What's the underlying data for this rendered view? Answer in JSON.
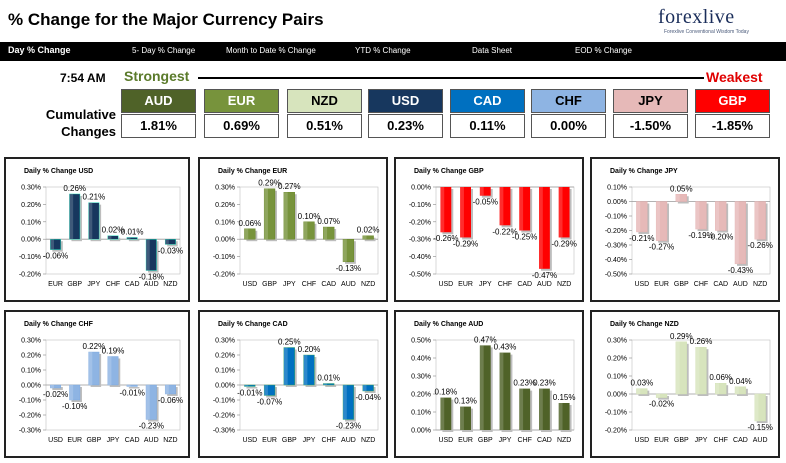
{
  "header": {
    "title": "% Change for the Major Currency Pairs",
    "logo_main": "forexlive",
    "logo_tag": "Forexlive Conventional Wisdom Today"
  },
  "nav": {
    "items": [
      "Day % Change",
      "5- Day % Change",
      "Month to Date % Change",
      "YTD % Change",
      "Data Sheet",
      "EOD % Change"
    ]
  },
  "summary": {
    "time": "7:54 AM",
    "strongest_label": "Strongest",
    "weakest_label": "Weakest",
    "cumulative_label_1": "Cumulative",
    "cumulative_label_2": "Changes",
    "currencies": [
      {
        "name": "AUD",
        "value": "1.81%",
        "color": "#4f6228",
        "text_color": "#ffffff"
      },
      {
        "name": "EUR",
        "value": "0.69%",
        "color": "#77933c",
        "text_color": "#ffffff"
      },
      {
        "name": "NZD",
        "value": "0.51%",
        "color": "#d7e4bd",
        "text_color": "#000000"
      },
      {
        "name": "USD",
        "value": "0.23%",
        "color": "#17375e",
        "text_color": "#ffffff"
      },
      {
        "name": "CAD",
        "value": "0.11%",
        "color": "#0070c0",
        "text_color": "#ffffff"
      },
      {
        "name": "CHF",
        "value": "0.00%",
        "color": "#8eb4e3",
        "text_color": "#000000"
      },
      {
        "name": "JPY",
        "value": "-1.50%",
        "color": "#e6b9b8",
        "text_color": "#000000"
      },
      {
        "name": "GBP",
        "value": "-1.85%",
        "color": "#ff0000",
        "text_color": "#ffffff"
      }
    ]
  },
  "chart_data": [
    {
      "type": "bar",
      "title": "Daily % Change USD",
      "categories": [
        "EUR",
        "GBP",
        "JPY",
        "CHF",
        "CAD",
        "AUD",
        "NZD"
      ],
      "values": [
        -0.06,
        0.26,
        0.21,
        0.02,
        0.01,
        -0.18,
        -0.03
      ],
      "labels": [
        "-0.06%",
        "0.26%",
        "0.21%",
        "0.02%",
        "0.01%",
        "-0.18%",
        "-0.03%"
      ],
      "ylim": [
        -0.2,
        0.3
      ],
      "ticks": [
        0.3,
        0.2,
        0.1,
        0,
        -0.1,
        -0.2
      ],
      "tick_labels": [
        "0.30%",
        "0.20%",
        "0.10%",
        "0.00%",
        "-0.10%",
        "-0.20%"
      ],
      "color": "#17375e"
    },
    {
      "type": "bar",
      "title": "Daily % Change EUR",
      "categories": [
        "USD",
        "GBP",
        "JPY",
        "CHF",
        "CAD",
        "AUD",
        "NZD"
      ],
      "values": [
        0.06,
        0.29,
        0.27,
        0.1,
        0.07,
        -0.13,
        0.02
      ],
      "labels": [
        "0.06%",
        "0.29%",
        "0.27%",
        "0.10%",
        "0.07%",
        "-0.13%",
        "0.02%"
      ],
      "ylim": [
        -0.2,
        0.3
      ],
      "ticks": [
        0.3,
        0.2,
        0.1,
        0,
        -0.1,
        -0.2
      ],
      "tick_labels": [
        "0.30%",
        "0.20%",
        "0.10%",
        "0.00%",
        "-0.10%",
        "-0.20%"
      ],
      "color": "#77933c"
    },
    {
      "type": "bar",
      "title": "Daily % Change GBP",
      "categories": [
        "USD",
        "EUR",
        "JPY",
        "CHF",
        "CAD",
        "AUD",
        "NZD"
      ],
      "values": [
        -0.26,
        -0.29,
        -0.05,
        -0.22,
        -0.25,
        -0.47,
        -0.29
      ],
      "labels": [
        "-0.26%",
        "-0.29%",
        "-0.05%",
        "-0.22%",
        "-0.25%",
        "-0.47%",
        "-0.29%"
      ],
      "ylim": [
        -0.5,
        0
      ],
      "ticks": [
        0,
        -0.1,
        -0.2,
        -0.3,
        -0.4,
        -0.5
      ],
      "tick_labels": [
        "0.00%",
        "-0.10%",
        "-0.20%",
        "-0.30%",
        "-0.40%",
        "-0.50%"
      ],
      "color": "#ff0000"
    },
    {
      "type": "bar",
      "title": "Daily % Change JPY",
      "categories": [
        "USD",
        "EUR",
        "GBP",
        "CHF",
        "CAD",
        "AUD",
        "NZD"
      ],
      "values": [
        -0.21,
        -0.27,
        0.05,
        -0.19,
        -0.2,
        -0.43,
        -0.26
      ],
      "labels": [
        "-0.21%",
        "-0.27%",
        "0.05%",
        "-0.19%",
        "-0.20%",
        "-0.43%",
        "-0.26%"
      ],
      "ylim": [
        -0.5,
        0.1
      ],
      "ticks": [
        0.1,
        0,
        -0.1,
        -0.2,
        -0.3,
        -0.4,
        -0.5
      ],
      "tick_labels": [
        "0.10%",
        "0.00%",
        "-0.10%",
        "-0.20%",
        "-0.30%",
        "-0.40%",
        "-0.50%"
      ],
      "color": "#e6b9b8"
    },
    {
      "type": "bar",
      "title": "Daily % Change CHF",
      "categories": [
        "USD",
        "EUR",
        "GBP",
        "JPY",
        "CAD",
        "AUD",
        "NZD"
      ],
      "values": [
        -0.02,
        -0.1,
        0.22,
        0.19,
        -0.01,
        -0.23,
        -0.06
      ],
      "labels": [
        "-0.02%",
        "-0.10%",
        "0.22%",
        "0.19%",
        "-0.01%",
        "-0.23%",
        "-0.06%"
      ],
      "ylim": [
        -0.3,
        0.3
      ],
      "ticks": [
        0.3,
        0.2,
        0.1,
        0,
        -0.1,
        -0.2,
        -0.3
      ],
      "tick_labels": [
        "0.30%",
        "0.20%",
        "0.10%",
        "0.00%",
        "-0.10%",
        "-0.20%",
        "-0.30%"
      ],
      "color": "#8eb4e3"
    },
    {
      "type": "bar",
      "title": "Daily % Change CAD",
      "categories": [
        "USD",
        "EUR",
        "GBP",
        "JPY",
        "CHF",
        "AUD",
        "NZD"
      ],
      "values": [
        -0.01,
        -0.07,
        0.25,
        0.2,
        0.01,
        -0.23,
        -0.04
      ],
      "labels": [
        "-0.01%",
        "-0.07%",
        "0.25%",
        "0.20%",
        "0.01%",
        "-0.23%",
        "-0.04%"
      ],
      "ylim": [
        -0.3,
        0.3
      ],
      "ticks": [
        0.3,
        0.2,
        0.1,
        0,
        -0.1,
        -0.2,
        -0.3
      ],
      "tick_labels": [
        "0.30%",
        "0.20%",
        "0.10%",
        "0.00%",
        "-0.10%",
        "-0.20%",
        "-0.30%"
      ],
      "color": "#0070c0"
    },
    {
      "type": "bar",
      "title": "Daily % Change AUD",
      "categories": [
        "USD",
        "EUR",
        "GBP",
        "JPY",
        "CHF",
        "CAD",
        "NZD"
      ],
      "values": [
        0.18,
        0.13,
        0.47,
        0.43,
        0.23,
        0.23,
        0.15
      ],
      "labels": [
        "0.18%",
        "0.13%",
        "0.47%",
        "0.43%",
        "0.23%",
        "0.23%",
        "0.15%"
      ],
      "ylim": [
        0,
        0.5
      ],
      "ticks": [
        0.5,
        0.4,
        0.3,
        0.2,
        0.1,
        0
      ],
      "tick_labels": [
        "0.50%",
        "0.40%",
        "0.30%",
        "0.20%",
        "0.10%",
        "0.00%"
      ],
      "color": "#4f6228"
    },
    {
      "type": "bar",
      "title": "Daily % Change NZD",
      "categories": [
        "USD",
        "EUR",
        "GBP",
        "JPY",
        "CHF",
        "CAD",
        "AUD"
      ],
      "values": [
        0.03,
        -0.02,
        0.29,
        0.26,
        0.06,
        0.04,
        -0.15
      ],
      "labels": [
        "0.03%",
        "-0.02%",
        "0.29%",
        "0.26%",
        "0.06%",
        "0.04%",
        "-0.15%"
      ],
      "ylim": [
        -0.2,
        0.3
      ],
      "ticks": [
        0.3,
        0.2,
        0.1,
        0,
        -0.1,
        -0.2
      ],
      "tick_labels": [
        "0.30%",
        "0.20%",
        "0.10%",
        "0.00%",
        "-0.10%",
        "-0.20%"
      ],
      "color": "#d7e4bd"
    }
  ]
}
